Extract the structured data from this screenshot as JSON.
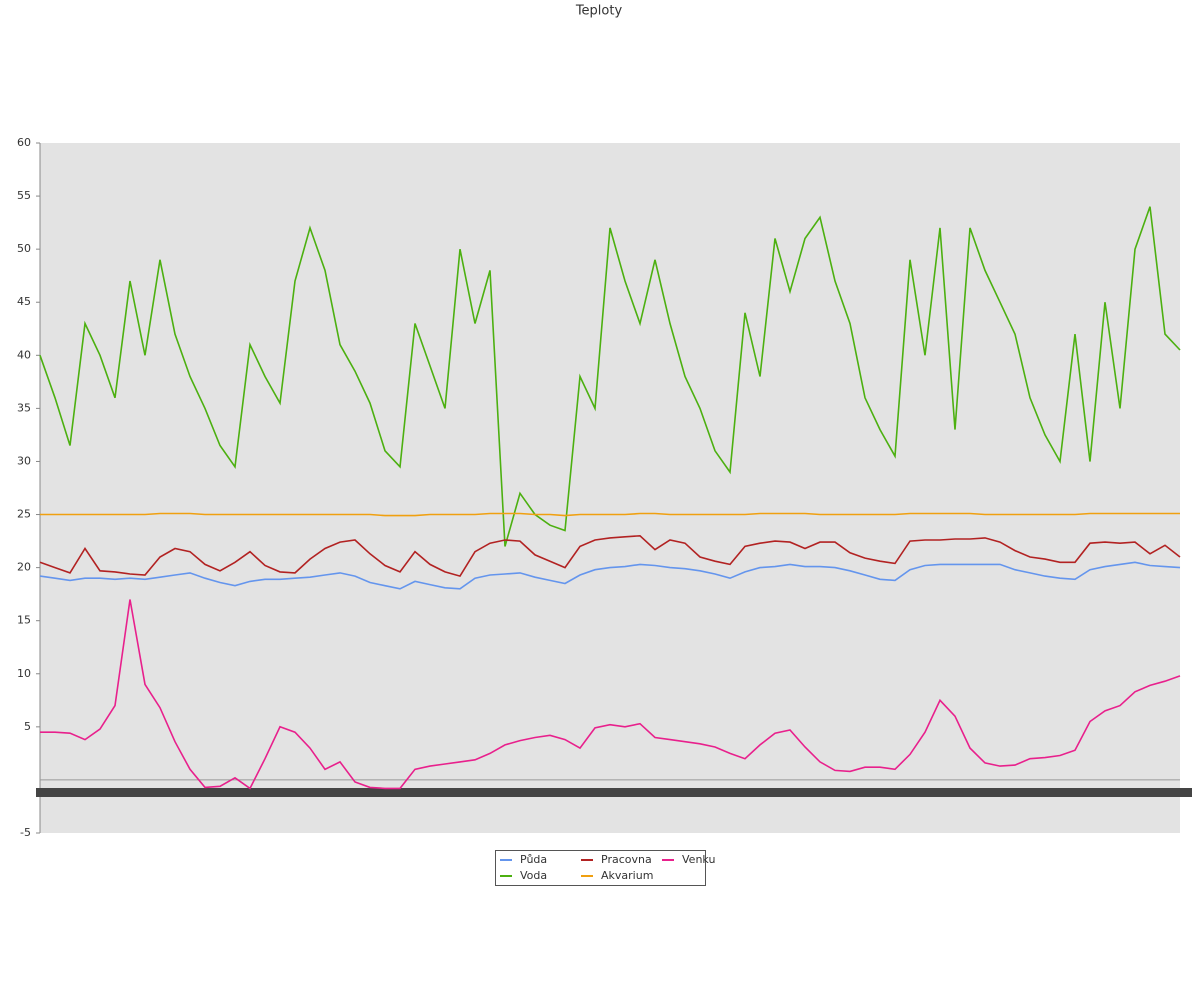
{
  "chart_data": {
    "type": "line",
    "title": "Teploty",
    "categories": [
      null,
      null,
      null,
      null,
      null,
      null,
      null,
      null,
      null,
      null,
      null,
      null,
      null,
      null,
      null,
      null,
      null,
      null,
      null,
      null,
      null,
      null,
      null,
      null,
      null,
      null,
      null,
      null,
      null,
      null,
      null,
      null,
      null,
      null,
      null,
      null,
      null,
      null,
      null,
      null,
      null,
      null,
      null,
      null,
      null,
      null,
      null,
      null,
      null,
      null,
      null,
      null,
      null,
      null,
      null,
      null,
      null,
      null,
      null,
      null,
      null,
      null,
      null,
      null,
      null,
      null,
      null,
      null,
      null,
      null,
      null,
      null,
      null,
      null,
      null,
      null,
      null
    ],
    "ylim": [
      -5,
      60
    ],
    "yticks": [
      -5,
      5,
      10,
      15,
      20,
      25,
      30,
      35,
      40,
      45,
      50,
      55,
      60
    ],
    "series": [
      {
        "name": "Půda",
        "color": "#6495ed",
        "values": [
          19.2,
          19,
          18.8,
          19,
          19,
          18.9,
          19,
          18.9,
          19.1,
          19.3,
          19.5,
          19,
          18.6,
          18.3,
          18.7,
          18.9,
          18.9,
          19,
          19.1,
          19.3,
          19.5,
          19.2,
          18.6,
          18.3,
          18,
          18.7,
          18.4,
          18.1,
          18,
          19,
          19.3,
          19.4,
          19.5,
          19.1,
          18.8,
          18.5,
          19.3,
          19.8,
          20,
          20.1,
          20.3,
          20.2,
          20,
          19.9,
          19.7,
          19.4,
          19,
          19.6,
          20,
          20.1,
          20.3,
          20.1,
          20.1,
          20,
          19.7,
          19.3,
          18.9,
          18.8,
          19.8,
          20.2,
          20.3,
          20.3,
          20.3,
          20.3,
          20.3,
          19.8,
          19.5,
          19.2,
          19,
          18.9,
          19.8,
          20.1,
          20.3,
          20.5,
          20.2,
          20.1,
          20
        ]
      },
      {
        "name": "Voda",
        "color": "#4cb010",
        "values": [
          40,
          36,
          31.5,
          43,
          40,
          36,
          47,
          40,
          49,
          42,
          38,
          35,
          31.5,
          29.5,
          41,
          38,
          35.5,
          47,
          52,
          48,
          41,
          38.5,
          35.5,
          31,
          29.5,
          43,
          39,
          35,
          50,
          43,
          48,
          22,
          27,
          25,
          24,
          23.5,
          38,
          35,
          52,
          47,
          43,
          49,
          43,
          38,
          35,
          31,
          29,
          44,
          38,
          51,
          46,
          51,
          53,
          47,
          43,
          36,
          33,
          30.5,
          49,
          40,
          52,
          33,
          52,
          48,
          45,
          42,
          36,
          32.5,
          30,
          42,
          30,
          45,
          35,
          50,
          54,
          42,
          40.5
        ]
      },
      {
        "name": "Pracovna",
        "color": "#b22222",
        "values": [
          20.5,
          20,
          19.5,
          21.8,
          19.7,
          19.6,
          19.4,
          19.3,
          21,
          21.8,
          21.5,
          20.3,
          19.7,
          20.5,
          21.5,
          20.2,
          19.6,
          19.5,
          20.8,
          21.8,
          22.4,
          22.6,
          21.3,
          20.2,
          19.6,
          21.5,
          20.3,
          19.6,
          19.2,
          21.5,
          22.3,
          22.6,
          22.5,
          21.2,
          20.6,
          20,
          22,
          22.6,
          22.8,
          22.9,
          23,
          21.7,
          22.6,
          22.3,
          21,
          20.6,
          20.3,
          22,
          22.3,
          22.5,
          22.4,
          21.8,
          22.4,
          22.4,
          21.4,
          20.9,
          20.6,
          20.4,
          22.5,
          22.6,
          22.6,
          22.7,
          22.7,
          22.8,
          22.4,
          21.6,
          21,
          20.8,
          20.5,
          20.5,
          22.3,
          22.4,
          22.3,
          22.4,
          21.3,
          22.1,
          21
        ]
      },
      {
        "name": "Akvarium",
        "color": "#f0a010",
        "values": [
          25,
          25,
          25,
          25,
          25,
          25,
          25,
          25,
          25.1,
          25.1,
          25.1,
          25,
          25,
          25,
          25,
          25,
          25,
          25,
          25,
          25,
          25,
          25,
          25,
          24.9,
          24.9,
          24.9,
          25,
          25,
          25,
          25,
          25.1,
          25.1,
          25.1,
          25,
          25,
          24.9,
          25,
          25,
          25,
          25,
          25.1,
          25.1,
          25,
          25,
          25,
          25,
          25,
          25,
          25.1,
          25.1,
          25.1,
          25.1,
          25,
          25,
          25,
          25,
          25,
          25,
          25.1,
          25.1,
          25.1,
          25.1,
          25.1,
          25,
          25,
          25,
          25,
          25,
          25,
          25,
          25.1,
          25.1,
          25.1,
          25.1,
          25.1,
          25.1,
          25.1
        ]
      },
      {
        "name": "Venku",
        "color": "#e8208c",
        "values": [
          4.5,
          4.5,
          4.4,
          3.8,
          4.8,
          7,
          17,
          9,
          6.8,
          3.6,
          1,
          -0.7,
          -0.6,
          0.2,
          -0.8,
          2,
          5,
          4.5,
          3,
          1,
          1.7,
          -0.2,
          -0.7,
          -0.8,
          -0.8,
          1,
          1.3,
          1.5,
          1.7,
          1.9,
          2.5,
          3.3,
          3.7,
          4,
          4.2,
          3.8,
          3,
          4.9,
          5.2,
          5,
          5.3,
          4,
          3.8,
          3.6,
          3.4,
          3.1,
          2.5,
          2,
          3.3,
          4.4,
          4.7,
          3.1,
          1.7,
          0.9,
          0.8,
          1.2,
          1.2,
          1,
          2.4,
          4.5,
          7.5,
          6,
          3,
          1.6,
          1.3,
          1.4,
          2,
          2.1,
          2.3,
          2.8,
          5.5,
          6.5,
          7,
          8.3,
          8.9,
          9.3,
          9.8
        ]
      }
    ]
  }
}
